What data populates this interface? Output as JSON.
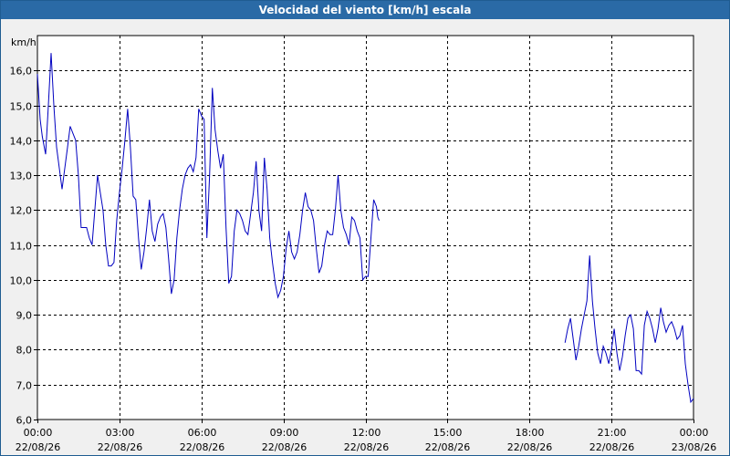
{
  "window": {
    "title": "Velocidad del viento [km/h] escala"
  },
  "colors": {
    "line": "#0000c0",
    "titlebar": "#2a6aa6",
    "plot_bg": "#ffffff",
    "grid": "#000000"
  },
  "chart_data": {
    "type": "line",
    "title": "Velocidad del viento [km/h] escala",
    "ylabel": "km/h",
    "xlabel": "",
    "ylim": [
      6.0,
      17.0
    ],
    "xlim": [
      0,
      24
    ],
    "grid": true,
    "grid_style": "dashed",
    "yticks": [
      "6,0",
      "7,0",
      "8,0",
      "9,0",
      "10,0",
      "11,0",
      "12,0",
      "13,0",
      "14,0",
      "15,0",
      "16,0"
    ],
    "xticks": [
      {
        "time": "00:00",
        "date": "22/08/26"
      },
      {
        "time": "03:00",
        "date": "22/08/26"
      },
      {
        "time": "06:00",
        "date": "22/08/26"
      },
      {
        "time": "09:00",
        "date": "22/08/26"
      },
      {
        "time": "12:00",
        "date": "22/08/26"
      },
      {
        "time": "15:00",
        "date": "22/08/26"
      },
      {
        "time": "18:00",
        "date": "22/08/26"
      },
      {
        "time": "21:00",
        "date": "22/08/26"
      },
      {
        "time": "00:00",
        "date": "23/08/26"
      }
    ],
    "series": [
      {
        "segments": [
          [
            [
              0.0,
              15.9
            ],
            [
              0.1,
              14.6
            ],
            [
              0.18,
              14.1
            ],
            [
              0.3,
              13.6
            ],
            [
              0.4,
              15.0
            ],
            [
              0.5,
              16.5
            ],
            [
              0.6,
              15.0
            ],
            [
              0.7,
              13.8
            ],
            [
              0.8,
              13.2
            ],
            [
              0.9,
              12.6
            ],
            [
              1.0,
              13.2
            ],
            [
              1.1,
              13.8
            ],
            [
              1.2,
              14.4
            ],
            [
              1.3,
              14.2
            ],
            [
              1.4,
              14.0
            ],
            [
              1.5,
              13.0
            ],
            [
              1.6,
              11.5
            ],
            [
              1.7,
              11.5
            ],
            [
              1.8,
              11.5
            ],
            [
              1.9,
              11.2
            ],
            [
              2.0,
              11.0
            ],
            [
              2.1,
              12.0
            ],
            [
              2.2,
              13.0
            ],
            [
              2.3,
              12.5
            ],
            [
              2.4,
              12.0
            ],
            [
              2.5,
              11.0
            ],
            [
              2.6,
              10.4
            ],
            [
              2.7,
              10.4
            ],
            [
              2.8,
              10.5
            ],
            [
              2.9,
              11.7
            ],
            [
              3.0,
              12.5
            ],
            [
              3.1,
              13.2
            ],
            [
              3.2,
              14.0
            ],
            [
              3.3,
              14.9
            ],
            [
              3.4,
              13.8
            ],
            [
              3.5,
              12.4
            ],
            [
              3.6,
              12.3
            ],
            [
              3.7,
              11.2
            ],
            [
              3.8,
              10.3
            ],
            [
              3.9,
              10.8
            ],
            [
              4.0,
              11.5
            ],
            [
              4.1,
              12.3
            ],
            [
              4.2,
              11.4
            ],
            [
              4.3,
              11.1
            ],
            [
              4.4,
              11.6
            ],
            [
              4.5,
              11.8
            ],
            [
              4.6,
              11.9
            ],
            [
              4.7,
              11.5
            ],
            [
              4.8,
              10.6
            ],
            [
              4.9,
              9.6
            ],
            [
              5.0,
              10.0
            ],
            [
              5.1,
              11.2
            ],
            [
              5.2,
              12.0
            ],
            [
              5.3,
              12.6
            ],
            [
              5.4,
              13.0
            ],
            [
              5.5,
              13.2
            ],
            [
              5.6,
              13.3
            ],
            [
              5.7,
              13.1
            ],
            [
              5.8,
              13.5
            ],
            [
              5.9,
              14.9
            ],
            [
              6.0,
              14.7
            ],
            [
              6.1,
              14.6
            ],
            [
              6.2,
              11.2
            ],
            [
              6.3,
              13.0
            ],
            [
              6.4,
              15.5
            ],
            [
              6.5,
              14.3
            ],
            [
              6.6,
              13.7
            ],
            [
              6.7,
              13.2
            ],
            [
              6.8,
              13.6
            ],
            [
              6.9,
              11.5
            ],
            [
              7.0,
              9.9
            ],
            [
              7.1,
              10.1
            ],
            [
              7.2,
              11.4
            ],
            [
              7.3,
              12.0
            ],
            [
              7.4,
              11.9
            ],
            [
              7.5,
              11.7
            ],
            [
              7.6,
              11.4
            ],
            [
              7.7,
              11.3
            ],
            [
              7.8,
              11.9
            ],
            [
              7.9,
              12.5
            ],
            [
              8.0,
              13.4
            ],
            [
              8.1,
              12.0
            ],
            [
              8.2,
              11.4
            ],
            [
              8.3,
              13.5
            ],
            [
              8.4,
              12.6
            ],
            [
              8.5,
              11.2
            ],
            [
              8.6,
              10.5
            ],
            [
              8.7,
              9.9
            ],
            [
              8.8,
              9.5
            ],
            [
              8.9,
              9.7
            ],
            [
              9.0,
              10.1
            ],
            [
              9.1,
              10.9
            ],
            [
              9.2,
              11.4
            ],
            [
              9.3,
              10.8
            ],
            [
              9.4,
              10.6
            ],
            [
              9.5,
              10.8
            ],
            [
              9.6,
              11.3
            ],
            [
              9.7,
              12.0
            ],
            [
              9.8,
              12.5
            ],
            [
              9.9,
              12.1
            ],
            [
              10.0,
              12.0
            ],
            [
              10.1,
              11.7
            ],
            [
              10.2,
              10.9
            ],
            [
              10.3,
              10.2
            ],
            [
              10.4,
              10.4
            ],
            [
              10.5,
              11.0
            ],
            [
              10.6,
              11.4
            ],
            [
              10.7,
              11.3
            ],
            [
              10.8,
              11.3
            ],
            [
              10.9,
              12.0
            ],
            [
              11.0,
              13.0
            ],
            [
              11.1,
              12.0
            ],
            [
              11.2,
              11.5
            ],
            [
              11.3,
              11.3
            ],
            [
              11.4,
              11.0
            ],
            [
              11.5,
              11.8
            ],
            [
              11.6,
              11.7
            ],
            [
              11.7,
              11.4
            ],
            [
              11.8,
              11.2
            ],
            [
              11.9,
              10.0
            ],
            [
              12.0,
              10.1
            ],
            [
              12.1,
              10.1
            ],
            [
              12.2,
              11.2
            ],
            [
              12.3,
              12.3
            ],
            [
              12.4,
              12.1
            ],
            [
              12.45,
              11.8
            ],
            [
              12.5,
              11.7
            ]
          ],
          [
            [
              19.3,
              8.2
            ],
            [
              19.4,
              8.6
            ],
            [
              19.5,
              8.9
            ],
            [
              19.6,
              8.3
            ],
            [
              19.7,
              7.7
            ],
            [
              19.8,
              8.1
            ],
            [
              19.9,
              8.6
            ],
            [
              20.0,
              9.0
            ],
            [
              20.1,
              9.4
            ],
            [
              20.2,
              10.7
            ],
            [
              20.3,
              9.4
            ],
            [
              20.4,
              8.6
            ],
            [
              20.5,
              7.9
            ],
            [
              20.6,
              7.6
            ],
            [
              20.7,
              8.1
            ],
            [
              20.8,
              7.9
            ],
            [
              20.9,
              7.6
            ],
            [
              21.0,
              8.0
            ],
            [
              21.1,
              8.6
            ],
            [
              21.2,
              7.9
            ],
            [
              21.3,
              7.4
            ],
            [
              21.4,
              7.8
            ],
            [
              21.5,
              8.4
            ],
            [
              21.6,
              8.9
            ],
            [
              21.7,
              9.0
            ],
            [
              21.8,
              8.6
            ],
            [
              21.9,
              7.4
            ],
            [
              22.0,
              7.4
            ],
            [
              22.1,
              7.3
            ],
            [
              22.2,
              8.7
            ],
            [
              22.3,
              9.1
            ],
            [
              22.4,
              8.9
            ],
            [
              22.5,
              8.6
            ],
            [
              22.6,
              8.2
            ],
            [
              22.7,
              8.6
            ],
            [
              22.8,
              9.2
            ],
            [
              22.9,
              8.8
            ],
            [
              23.0,
              8.5
            ],
            [
              23.1,
              8.7
            ],
            [
              23.2,
              8.8
            ],
            [
              23.3,
              8.6
            ],
            [
              23.4,
              8.3
            ],
            [
              23.5,
              8.4
            ],
            [
              23.6,
              8.7
            ],
            [
              23.7,
              7.6
            ],
            [
              23.8,
              7.0
            ],
            [
              23.9,
              6.5
            ],
            [
              24.0,
              6.6
            ]
          ]
        ]
      }
    ]
  }
}
